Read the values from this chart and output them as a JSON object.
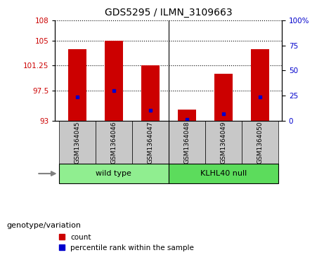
{
  "title": "GDS5295 / ILMN_3109663",
  "categories": [
    "GSM1364045",
    "GSM1364046",
    "GSM1364047",
    "GSM1364048",
    "GSM1364049",
    "GSM1364050"
  ],
  "bar_bottom": 93,
  "bar_tops_red": [
    103.7,
    105.0,
    101.3,
    94.7,
    100.0,
    103.7
  ],
  "blue_markers": [
    96.5,
    97.5,
    94.5,
    93.2,
    94.0,
    96.5
  ],
  "ylim_left": [
    93,
    108
  ],
  "ylim_right": [
    0,
    100
  ],
  "yticks_left": [
    93,
    97.5,
    101.25,
    105,
    108
  ],
  "yticks_right": [
    0,
    25,
    50,
    75,
    100
  ],
  "ytick_labels_left": [
    "93",
    "97.5",
    "101.25",
    "105",
    "108"
  ],
  "ytick_labels_right": [
    "0",
    "25",
    "50",
    "75",
    "100%"
  ],
  "dotted_lines": [
    97.5,
    101.25,
    105,
    108
  ],
  "bar_color": "#cc0000",
  "blue_color": "#0000cc",
  "plot_area_color": "#ffffff",
  "tick_area_color": "#c8c8c8",
  "green_color_wt": "#90ee90",
  "green_color_kl": "#5cdc5c",
  "legend_items": [
    "count",
    "percentile rank within the sample"
  ],
  "bar_width": 0.5,
  "left_tick_color": "#cc0000",
  "right_tick_color": "#0000cc",
  "separator_x": 2.5,
  "xlim": [
    -0.6,
    5.6
  ]
}
